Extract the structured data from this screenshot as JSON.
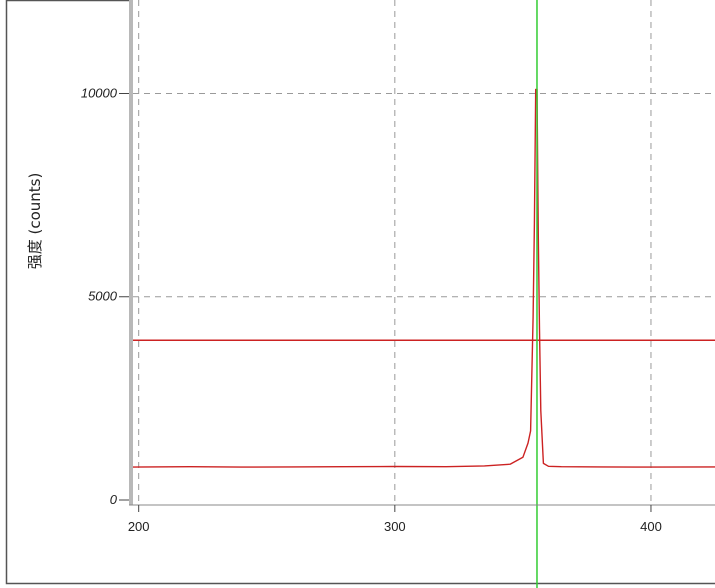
{
  "chart_data": {
    "type": "line",
    "title": "",
    "xlabel": "",
    "ylabel": "强度 (counts)",
    "xlim": [
      197,
      425
    ],
    "ylim": [
      0,
      12300
    ],
    "grid": true,
    "x_ticks": [
      {
        "value": 200,
        "label": "200"
      },
      {
        "value": 300,
        "label": "300"
      },
      {
        "value": 400,
        "label": "400"
      }
    ],
    "y_ticks": [
      {
        "value": 0,
        "label": "0"
      },
      {
        "value": 5000,
        "label": "5000"
      },
      {
        "value": 10000,
        "label": "10000"
      }
    ],
    "threshold_line": {
      "y": 3930,
      "color": "#cc2222"
    },
    "marker_line": {
      "x": 355.5,
      "color": "#33cc33"
    },
    "series": [
      {
        "color": "#cc2222",
        "x": [
          197,
          220,
          240,
          260,
          280,
          300,
          320,
          335,
          345,
          350,
          352,
          353,
          354,
          354.5,
          355,
          355.5,
          356,
          356.5,
          357,
          358,
          360,
          365,
          380,
          400,
          425
        ],
        "y": [
          810,
          820,
          810,
          815,
          820,
          825,
          820,
          840,
          880,
          1050,
          1400,
          1700,
          4500,
          6800,
          10100,
          10100,
          6500,
          4200,
          2200,
          900,
          830,
          820,
          815,
          810,
          815
        ]
      }
    ]
  }
}
